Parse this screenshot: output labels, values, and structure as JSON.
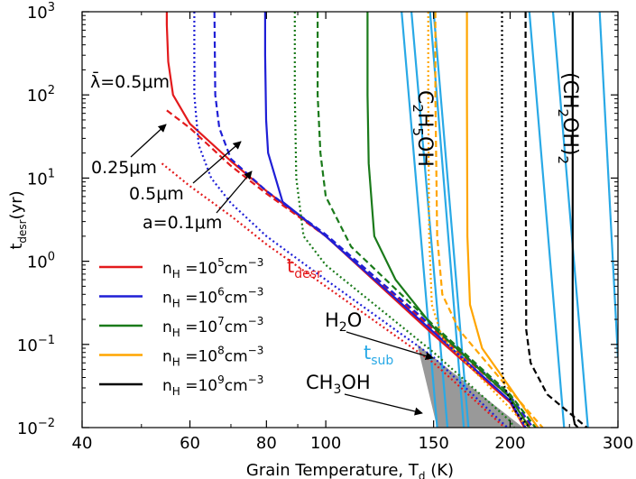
{
  "chart_data": {
    "type": "line",
    "xlabel_main": "Grain Temperature, T",
    "xlabel_sub": "d",
    "xlabel_unit": " (K)",
    "ylabel_main": "t",
    "ylabel_sub": "desr",
    "ylabel_unit": "(yr)",
    "x_scale": "log",
    "y_scale": "log",
    "xlim": [
      40,
      300
    ],
    "ylim": [
      0.01,
      1000
    ],
    "x_ticks": [
      {
        "value": 40,
        "label": "40"
      },
      {
        "value": 60,
        "label": "60"
      },
      {
        "value": 80,
        "label": "80"
      },
      {
        "value": 100,
        "label": "100"
      },
      {
        "value": 150,
        "label": "150"
      },
      {
        "value": 200,
        "label": "200"
      },
      {
        "value": 300,
        "label": "300"
      }
    ],
    "x_minor_ticks": [
      50,
      70,
      90,
      250
    ],
    "y_ticks": [
      {
        "value": 0.01,
        "base": "10",
        "exp": "−2"
      },
      {
        "value": 0.1,
        "base": "10",
        "exp": "−1"
      },
      {
        "value": 1,
        "base": "10",
        "exp": "0"
      },
      {
        "value": 10,
        "base": "10",
        "exp": "1"
      },
      {
        "value": 100,
        "base": "10",
        "exp": "2"
      },
      {
        "value": 1000,
        "base": "10",
        "exp": "3"
      }
    ],
    "grid": false,
    "legend_placement": "lower-left",
    "density_colors": {
      "1e5": "#e31a1c",
      "1e6": "#1f1fd6",
      "1e7": "#1a7a1a",
      "1e8": "#ffa500",
      "1e9": "#000000"
    },
    "tsub_color": "#29a9e6",
    "shade_color": "#999999",
    "legend": [
      {
        "label": "n",
        "sub": "H",
        "mid": " =10",
        "exp": "5",
        "unit": "cm",
        "uexp": "−3",
        "color": "#e31a1c"
      },
      {
        "label": "n",
        "sub": "H",
        "mid": " =10",
        "exp": "6",
        "unit": "cm",
        "uexp": "−3",
        "color": "#1f1fd6"
      },
      {
        "label": "n",
        "sub": "H",
        "mid": " =10",
        "exp": "7",
        "unit": "cm",
        "uexp": "−3",
        "color": "#1a7a1a"
      },
      {
        "label": "n",
        "sub": "H",
        "mid": " =10",
        "exp": "8",
        "unit": "cm",
        "uexp": "−3",
        "color": "#ffa500"
      },
      {
        "label": "n",
        "sub": "H",
        "mid": " =10",
        "exp": "9",
        "unit": "cm",
        "uexp": "−3",
        "color": "#000000"
      }
    ],
    "tdesr_label": {
      "main": "t",
      "sub": "desr",
      "color": "#e31a1c"
    },
    "tsub_label": {
      "main": "t",
      "sub": "sub",
      "color": "#29a9e6"
    },
    "annotations": {
      "lambda": "λ̄=0.5μm",
      "size_025": "0.25μm",
      "size_05": "0.5μm",
      "size_01": "a=0.1μm",
      "h2o": "H",
      "h2o_sub": "2",
      "h2o_end": "O",
      "ch3oh": "CH",
      "ch3oh_sub": "3",
      "ch3oh_end": "OH",
      "c2h5oh": "C",
      "c2h5oh_sub1": "2",
      "c2h5oh_mid": "H",
      "c2h5oh_sub2": "5",
      "c2h5oh_end": "OH",
      "ch2oh2": "(CH",
      "ch2oh2_sub1": "2",
      "ch2oh2_mid": "OH)",
      "ch2oh2_sub2": "2"
    },
    "series": [
      {
        "name": "nH=1e5, a=0.1μm",
        "color": "#e31a1c",
        "dash": "solid",
        "points": [
          [
            55,
            1000
          ],
          [
            55,
            700
          ],
          [
            55.3,
            250
          ],
          [
            56.3,
            100
          ],
          [
            60,
            45
          ],
          [
            70,
            16
          ],
          [
            80,
            7
          ],
          [
            100,
            2
          ],
          [
            150,
            0.13
          ],
          [
            200,
            0.02
          ],
          [
            211,
            0.01
          ]
        ]
      },
      {
        "name": "nH=1e5, a=0.5μm",
        "color": "#e31a1c",
        "dash": "dashed",
        "points": [
          [
            55,
            65
          ],
          [
            60,
            40
          ],
          [
            70,
            14
          ],
          [
            80,
            6.5
          ],
          [
            100,
            2
          ],
          [
            150,
            0.15
          ],
          [
            200,
            0.023
          ],
          [
            216,
            0.01
          ]
        ]
      },
      {
        "name": "nH=1e5, a=0.25μm",
        "color": "#e31a1c",
        "dash": "dotted",
        "points": [
          [
            54,
            15
          ],
          [
            60,
            8
          ],
          [
            70,
            3.5
          ],
          [
            80,
            1.6
          ],
          [
            100,
            0.5
          ],
          [
            150,
            0.06
          ],
          [
            196,
            0.01
          ]
        ]
      },
      {
        "name": "nH=1e6, a=0.1μm",
        "color": "#1f1fd6",
        "dash": "solid",
        "points": [
          [
            79.6,
            1000
          ],
          [
            79.6,
            300
          ],
          [
            79.9,
            50
          ],
          [
            80.5,
            20
          ],
          [
            85,
            5.2
          ],
          [
            100,
            2
          ],
          [
            150,
            0.14
          ],
          [
            200,
            0.021
          ],
          [
            212,
            0.01
          ]
        ]
      },
      {
        "name": "nH=1e6, a=0.5μm",
        "color": "#1f1fd6",
        "dash": "dashed",
        "points": [
          [
            65.8,
            1000
          ],
          [
            66,
            100
          ],
          [
            67,
            40
          ],
          [
            70,
            17
          ],
          [
            80,
            7
          ],
          [
            100,
            2.1
          ],
          [
            150,
            0.16
          ],
          [
            200,
            0.024
          ],
          [
            218,
            0.01
          ]
        ]
      },
      {
        "name": "nH=1e6, a=0.25μm",
        "color": "#1f1fd6",
        "dash": "dotted",
        "points": [
          [
            61,
            1000
          ],
          [
            61,
            100
          ],
          [
            62,
            25
          ],
          [
            65,
            10
          ],
          [
            70,
            5
          ],
          [
            80,
            2
          ],
          [
            100,
            0.6
          ],
          [
            150,
            0.07
          ],
          [
            198,
            0.01
          ]
        ]
      },
      {
        "name": "nH=1e7, a=0.1μm",
        "color": "#1a7a1a",
        "dash": "solid",
        "points": [
          [
            117,
            1000
          ],
          [
            117,
            100
          ],
          [
            117.5,
            15
          ],
          [
            120,
            2
          ],
          [
            130,
            0.6
          ],
          [
            150,
            0.16
          ],
          [
            200,
            0.023
          ],
          [
            215,
            0.01
          ]
        ]
      },
      {
        "name": "nH=1e7, a=0.5μm",
        "color": "#1a7a1a",
        "dash": "dashed",
        "points": [
          [
            97,
            1000
          ],
          [
            97,
            100
          ],
          [
            98,
            20
          ],
          [
            100,
            6
          ],
          [
            110,
            1.5
          ],
          [
            150,
            0.17
          ],
          [
            200,
            0.025
          ],
          [
            220,
            0.01
          ]
        ]
      },
      {
        "name": "nH=1e7, a=0.25μm",
        "color": "#1a7a1a",
        "dash": "dotted",
        "points": [
          [
            89,
            1000
          ],
          [
            89,
            100
          ],
          [
            89.5,
            10
          ],
          [
            92,
            2
          ],
          [
            100,
            0.9
          ],
          [
            150,
            0.08
          ],
          [
            200,
            0.012
          ],
          [
            203,
            0.01
          ]
        ]
      },
      {
        "name": "nH=1e8, a=0.1μm",
        "color": "#ffa500",
        "dash": "solid",
        "points": [
          [
            170,
            1000
          ],
          [
            170,
            100
          ],
          [
            170.3,
            2
          ],
          [
            172,
            0.3
          ],
          [
            180,
            0.09
          ],
          [
            200,
            0.03
          ],
          [
            222,
            0.01
          ]
        ]
      },
      {
        "name": "nH=1e8, a=0.5μm",
        "color": "#ffa500",
        "dash": "dashed",
        "points": [
          [
            151,
            1000
          ],
          [
            151,
            100
          ],
          [
            152,
            2
          ],
          [
            155,
            0.4
          ],
          [
            165,
            0.15
          ],
          [
            200,
            0.028
          ],
          [
            226,
            0.01
          ]
        ]
      },
      {
        "name": "nH=1e8, a=0.25μm",
        "color": "#ffa500",
        "dash": "dotted",
        "points": [
          [
            147,
            1000
          ],
          [
            147,
            100
          ],
          [
            147.5,
            2
          ],
          [
            149,
            0.3
          ],
          [
            155,
            0.12
          ],
          [
            200,
            0.017
          ],
          [
            214,
            0.01
          ]
        ]
      },
      {
        "name": "nH=1e9, a=0.1μm",
        "color": "#000000",
        "dash": "solid",
        "points": [
          [
            253,
            1000
          ],
          [
            253,
            0.015
          ],
          [
            255,
            0.011
          ],
          [
            258,
            0.01
          ]
        ]
      },
      {
        "name": "nH=1e9, a=0.5μm",
        "color": "#000000",
        "dash": "dashed",
        "points": [
          [
            212,
            1000
          ],
          [
            212,
            100
          ],
          [
            212.5,
            0.15
          ],
          [
            216,
            0.06
          ],
          [
            230,
            0.025
          ],
          [
            267,
            0.01
          ]
        ]
      },
      {
        "name": "nH=1e9, a=0.25μm",
        "color": "#000000",
        "dash": "dotted",
        "points": [
          [
            194,
            1000
          ],
          [
            194,
            0.05
          ],
          [
            196,
            0.03
          ],
          [
            205,
            0.015
          ],
          [
            215,
            0.01
          ]
        ]
      }
    ],
    "tsub_lines": [
      [
        [
          133,
          1000
        ],
        [
          152,
          0.01
        ]
      ],
      [
        [
          138,
          1000
        ],
        [
          158,
          0.01
        ]
      ],
      [
        [
          148,
          1000
        ],
        [
          168,
          0.01
        ]
      ],
      [
        [
          150,
          1000
        ],
        [
          171,
          0.01
        ]
      ],
      [
        [
          215,
          1000
        ],
        [
          245,
          0.01
        ]
      ],
      [
        [
          235,
          1000
        ],
        [
          268,
          0.01
        ]
      ],
      [
        [
          280,
          1000
        ],
        [
          300,
          0.07
        ]
      ]
    ],
    "shaded_region": [
      [
        141,
        0.1
      ],
      [
        210,
        0.01
      ],
      [
        152,
        0.01
      ]
    ]
  }
}
